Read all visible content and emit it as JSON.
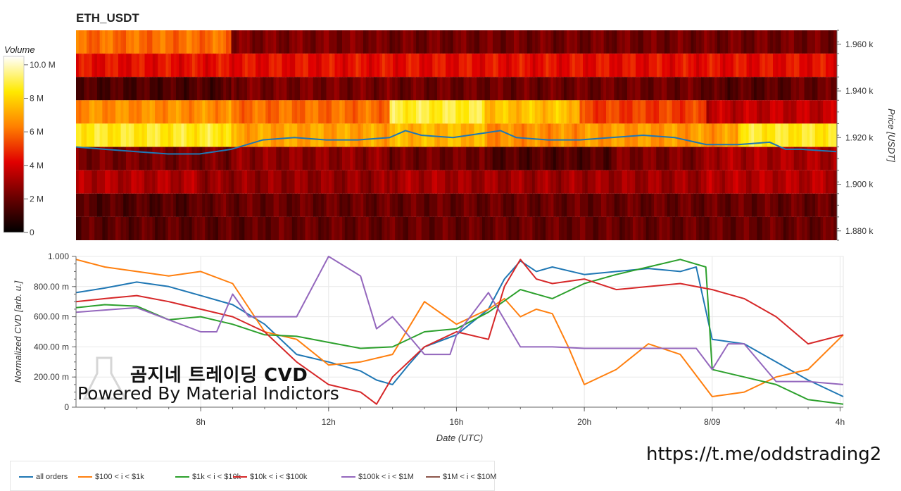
{
  "title": "ETH_USDT",
  "watermark": {
    "line1": "곰지네 트레이딩 CVD",
    "line2": "Powered By Material Indictors"
  },
  "url": "https://t.me/oddstrading2",
  "colors": {
    "all_orders": "#1f77b4",
    "b100_1k": "#ff7f0e",
    "b1k_10k": "#2ca02c",
    "b10k_100k": "#d62728",
    "b100k_1m": "#9467bd",
    "b1m_10m": "#8c564b"
  },
  "chart_data": [
    {
      "type": "heatmap",
      "title": "ETH_USDT",
      "ylabel": "Price [USDT]",
      "ylim": [
        1876,
        1966
      ],
      "y_ticks": [
        "1.880 k",
        "1.900 k",
        "1.920 k",
        "1.940 k",
        "1.960 k"
      ],
      "y_tick_values": [
        1880,
        1900,
        1920,
        1940,
        1960
      ],
      "price_levels": [
        1961,
        1951,
        1941,
        1931,
        1921,
        1911,
        1901,
        1891,
        1881
      ],
      "time_range": [
        4.1,
        28.1
      ],
      "colorbar": {
        "title": "Volume",
        "ticks": [
          "0",
          "2 M",
          "4 M",
          "6 M",
          "8 M",
          "10.0 M"
        ],
        "tick_values": [
          0,
          2,
          4,
          6,
          8,
          10
        ],
        "range": [
          0,
          10.5
        ]
      },
      "band_volume": [
        {
          "price": 1961,
          "segments": [
            [
              4.1,
              9.0,
              6.0
            ],
            [
              9.0,
              13.5,
              2.4
            ],
            [
              13.5,
              28.1,
              2.2
            ]
          ]
        },
        {
          "price": 1951,
          "segments": [
            [
              4.1,
              28.1,
              4.4
            ]
          ]
        },
        {
          "price": 1941,
          "segments": [
            [
              4.1,
              9.0,
              1.5
            ],
            [
              9.0,
              14.0,
              2.3
            ],
            [
              14.0,
              24.0,
              2.1
            ],
            [
              24.0,
              26.5,
              1.7
            ],
            [
              26.5,
              28.1,
              2.0
            ]
          ]
        },
        {
          "price": 1931,
          "segments": [
            [
              4.1,
              9.0,
              6.6
            ],
            [
              9.0,
              14.0,
              6.0
            ],
            [
              14.0,
              17.0,
              8.8
            ],
            [
              17.0,
              20.0,
              7.6
            ],
            [
              20.0,
              24.0,
              5.2
            ],
            [
              24.0,
              28.1,
              3.6
            ]
          ]
        },
        {
          "price": 1921,
          "segments": [
            [
              4.1,
              9.0,
              8.6
            ],
            [
              9.0,
              14.0,
              7.0
            ],
            [
              14.0,
              17.0,
              7.4
            ],
            [
              17.0,
              20.0,
              6.6
            ],
            [
              20.0,
              25.0,
              6.8
            ],
            [
              25.0,
              28.1,
              8.6
            ]
          ]
        },
        {
          "price": 1911,
          "segments": [
            [
              4.1,
              9.0,
              2.3
            ],
            [
              9.0,
              14.0,
              2.7
            ],
            [
              14.0,
              17.0,
              2.2
            ],
            [
              17.0,
              21.0,
              1.6
            ],
            [
              21.0,
              24.0,
              2.4
            ],
            [
              24.0,
              28.1,
              3.2
            ]
          ]
        },
        {
          "price": 1901,
          "segments": [
            [
              4.1,
              8.0,
              3.3
            ],
            [
              8.0,
              14.0,
              2.8
            ],
            [
              14.0,
              16.0,
              3.2
            ],
            [
              16.0,
              24.0,
              3.0
            ],
            [
              24.0,
              28.1,
              3.4
            ]
          ]
        },
        {
          "price": 1891,
          "segments": [
            [
              4.1,
              8.0,
              1.6
            ],
            [
              8.0,
              28.1,
              2.0
            ]
          ]
        },
        {
          "price": 1881,
          "segments": [
            [
              4.1,
              10.0,
              1.8
            ],
            [
              10.0,
              28.1,
              2.0
            ]
          ]
        }
      ],
      "price_line": {
        "name": "price",
        "x": [
          4.1,
          5.0,
          6.0,
          7.0,
          8.0,
          8.5,
          9.0,
          10.0,
          11.0,
          12.0,
          13.0,
          14.0,
          14.5,
          15.0,
          16.0,
          17.0,
          17.5,
          18.0,
          19.0,
          20.0,
          21.0,
          22.0,
          23.0,
          24.0,
          25.0,
          26.0,
          26.5,
          27.0,
          28.1
        ],
        "y": [
          1916,
          1915,
          1914,
          1913,
          1913,
          1914,
          1915,
          1919,
          1920,
          1919,
          1919,
          1920,
          1923,
          1921,
          1920,
          1922,
          1923,
          1920,
          1919,
          1919,
          1920,
          1921,
          1920,
          1917,
          1917,
          1918,
          1915,
          1915,
          1914
        ]
      }
    },
    {
      "type": "line",
      "xlabel": "Date (UTC)",
      "ylabel": "Normalized CVD [arb. u.]",
      "ylim": [
        0,
        1.0
      ],
      "y_ticks": [
        "0",
        "200.00 m",
        "400.00 m",
        "600.00 m",
        "800.00 m",
        "1.000"
      ],
      "y_tick_values": [
        0,
        0.2,
        0.4,
        0.6,
        0.8,
        1.0
      ],
      "x_range": [
        4.1,
        28.1
      ],
      "x_ticks": [
        "8h",
        "12h",
        "16h",
        "20h",
        "8/09",
        "4h"
      ],
      "x_tick_values": [
        8,
        12,
        16,
        20,
        24,
        28
      ],
      "series": [
        {
          "name": "all orders",
          "x": [
            4.1,
            5.0,
            6.0,
            7.0,
            8.0,
            9.0,
            10.0,
            11.0,
            12.0,
            12.5,
            13.0,
            13.5,
            14.0,
            14.5,
            15.0,
            16.0,
            17.0,
            17.5,
            18.0,
            18.5,
            19.0,
            20.0,
            21.0,
            22.0,
            23.0,
            23.5,
            24.0,
            25.0,
            26.0,
            27.0,
            28.1
          ],
          "y": [
            0.76,
            0.79,
            0.83,
            0.8,
            0.74,
            0.68,
            0.55,
            0.35,
            0.3,
            0.27,
            0.24,
            0.18,
            0.15,
            0.28,
            0.4,
            0.48,
            0.65,
            0.85,
            0.97,
            0.9,
            0.93,
            0.88,
            0.9,
            0.92,
            0.9,
            0.93,
            0.45,
            0.42,
            0.3,
            0.18,
            0.07
          ]
        },
        {
          "name": "$100 < i < $1k",
          "x": [
            4.1,
            5.0,
            6.0,
            7.0,
            8.0,
            9.0,
            10.0,
            11.0,
            12.0,
            13.0,
            14.0,
            15.0,
            16.0,
            17.0,
            17.5,
            18.0,
            18.5,
            19.0,
            19.5,
            20.0,
            21.0,
            22.0,
            23.0,
            24.0,
            25.0,
            26.0,
            27.0,
            28.1
          ],
          "y": [
            0.98,
            0.93,
            0.9,
            0.87,
            0.9,
            0.82,
            0.5,
            0.45,
            0.28,
            0.3,
            0.35,
            0.7,
            0.55,
            0.65,
            0.72,
            0.6,
            0.65,
            0.62,
            0.4,
            0.15,
            0.25,
            0.42,
            0.35,
            0.07,
            0.1,
            0.2,
            0.25,
            0.48
          ]
        },
        {
          "name": "$1k < i < $10k",
          "x": [
            4.1,
            5.0,
            6.0,
            7.0,
            8.0,
            9.0,
            10.0,
            11.0,
            12.0,
            13.0,
            14.0,
            15.0,
            16.0,
            17.0,
            18.0,
            19.0,
            20.0,
            21.0,
            22.0,
            23.0,
            23.8,
            24.0,
            25.0,
            26.0,
            27.0,
            28.1
          ],
          "y": [
            0.66,
            0.68,
            0.67,
            0.58,
            0.6,
            0.55,
            0.48,
            0.47,
            0.43,
            0.39,
            0.4,
            0.5,
            0.52,
            0.63,
            0.78,
            0.72,
            0.82,
            0.88,
            0.93,
            0.98,
            0.93,
            0.25,
            0.2,
            0.15,
            0.05,
            0.02
          ]
        },
        {
          "name": "$10k < i < $100k",
          "x": [
            4.1,
            5.0,
            6.0,
            7.0,
            8.0,
            9.0,
            10.0,
            11.0,
            12.0,
            13.0,
            13.5,
            14.0,
            15.0,
            16.0,
            17.0,
            17.5,
            18.0,
            18.5,
            19.0,
            20.0,
            21.0,
            22.0,
            23.0,
            24.0,
            25.0,
            26.0,
            27.0,
            28.1
          ],
          "y": [
            0.7,
            0.72,
            0.74,
            0.7,
            0.65,
            0.6,
            0.5,
            0.3,
            0.15,
            0.1,
            0.02,
            0.2,
            0.4,
            0.5,
            0.45,
            0.8,
            0.98,
            0.85,
            0.82,
            0.85,
            0.78,
            0.8,
            0.82,
            0.78,
            0.72,
            0.6,
            0.42,
            0.48
          ]
        },
        {
          "name": "$100k < i < $1M",
          "x": [
            4.1,
            6.0,
            8.0,
            8.5,
            9.0,
            9.5,
            10.0,
            11.0,
            12.0,
            13.0,
            13.5,
            14.0,
            15.0,
            15.8,
            16.0,
            17.0,
            18.0,
            19.0,
            20.0,
            21.0,
            22.0,
            23.0,
            23.5,
            24.0,
            24.5,
            25.0,
            26.0,
            27.0,
            28.1
          ],
          "y": [
            0.63,
            0.66,
            0.5,
            0.5,
            0.75,
            0.6,
            0.6,
            0.6,
            1.0,
            0.87,
            0.52,
            0.6,
            0.35,
            0.35,
            0.48,
            0.76,
            0.4,
            0.4,
            0.39,
            0.39,
            0.39,
            0.39,
            0.39,
            0.25,
            0.42,
            0.42,
            0.17,
            0.17,
            0.15
          ]
        },
        {
          "name": "$1M < i < $10M",
          "x": [],
          "y": []
        }
      ]
    }
  ]
}
